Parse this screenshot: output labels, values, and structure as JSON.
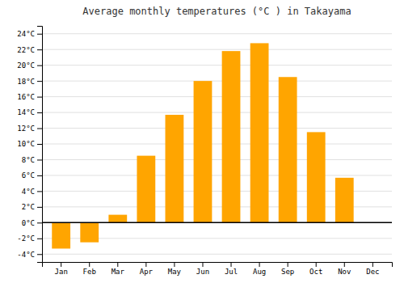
{
  "chart_data": {
    "type": "bar",
    "title": "Average monthly temperatures (°C ) in Takayama",
    "categories": [
      "Jan",
      "Feb",
      "Mar",
      "Apr",
      "May",
      "Jun",
      "Jul",
      "Aug",
      "Sep",
      "Oct",
      "Nov",
      "Dec"
    ],
    "values": [
      -3.3,
      -2.5,
      1.0,
      8.5,
      13.7,
      18.0,
      21.8,
      22.8,
      18.5,
      11.5,
      5.7,
      0.0
    ],
    "color": "#FFA500",
    "ylim": [
      -5,
      25
    ],
    "yticks": [
      {
        "value": -4,
        "label": "-4°C"
      },
      {
        "value": -2,
        "label": "-2°C"
      },
      {
        "value": 0,
        "label": "0°C"
      },
      {
        "value": 2,
        "label": "2°C"
      },
      {
        "value": 4,
        "label": "4°C"
      },
      {
        "value": 6,
        "label": "6°C"
      },
      {
        "value": 8,
        "label": "8°C"
      },
      {
        "value": 10,
        "label": "10°C"
      },
      {
        "value": 12,
        "label": "12°C"
      },
      {
        "value": 14,
        "label": "14°C"
      },
      {
        "value": 16,
        "label": "16°C"
      },
      {
        "value": 18,
        "label": "18°C"
      },
      {
        "value": 20,
        "label": "20°C"
      },
      {
        "value": 22,
        "label": "22°C"
      },
      {
        "value": 24,
        "label": "24°C"
      }
    ],
    "grid": true
  }
}
